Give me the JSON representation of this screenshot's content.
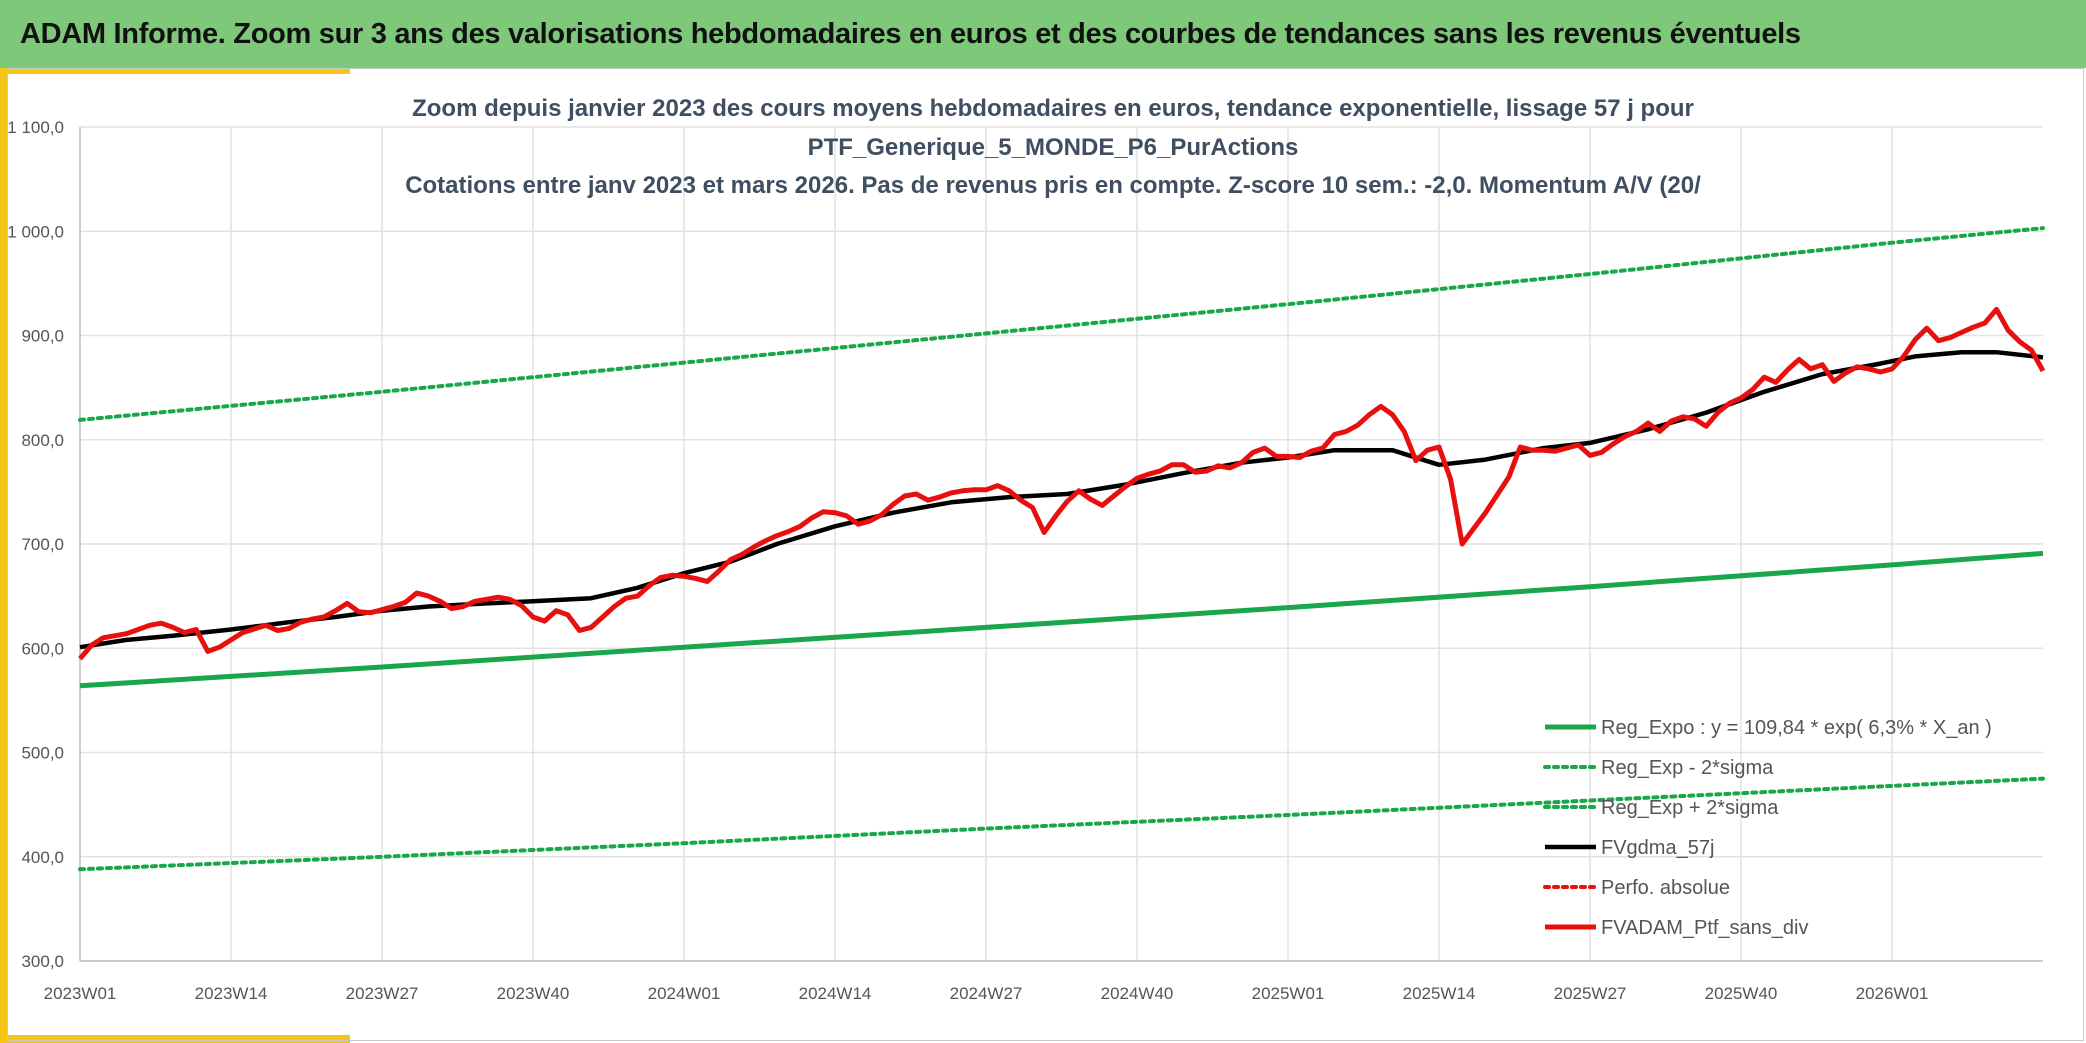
{
  "header": {
    "title": "ADAM Informe. Zoom sur 3 ans des valorisations hebdomadaires en euros et des courbes de tendances sans les revenus éventuels"
  },
  "colors": {
    "banner": "#7ec87a",
    "accent": "#f5c518",
    "trend": "#1aa64a",
    "sigma": "#1aa64a",
    "smoothed": "#000000",
    "price": "#e8100f",
    "perf": "#e8100f",
    "grid": "#e2e2e2"
  },
  "chart_data": {
    "type": "line",
    "title_lines": [
      "Zoom depuis janvier 2023 des cours moyens hebdomadaires en euros, tendance exponentielle, lissage 57 j pour",
      "PTF_Generique_5_MONDE_P6_PurActions",
      "Cotations entre janv 2023 et mars 2026. Pas de revenus pris en compte. Z-score 10 sem.: -2,0. Momentum A/V (20/"
    ],
    "ylim": [
      300,
      1100
    ],
    "y_ticks": [
      {
        "value": 300,
        "label": "300,0"
      },
      {
        "value": 400,
        "label": "400,0"
      },
      {
        "value": 500,
        "label": "500,0"
      },
      {
        "value": 600,
        "label": "600,0"
      },
      {
        "value": 700,
        "label": "700,0"
      },
      {
        "value": 800,
        "label": "800,0"
      },
      {
        "value": 900,
        "label": "900,0"
      },
      {
        "value": 1000,
        "label": "1 000,0"
      },
      {
        "value": 1100,
        "label": "1 100,0"
      }
    ],
    "xlim": [
      0,
      169
    ],
    "x_ticks": [
      {
        "value": 0,
        "label": "2023W01"
      },
      {
        "value": 13,
        "label": "2023W14"
      },
      {
        "value": 26,
        "label": "2023W27"
      },
      {
        "value": 39,
        "label": "2023W40"
      },
      {
        "value": 52,
        "label": "2024W01"
      },
      {
        "value": 65,
        "label": "2024W14"
      },
      {
        "value": 78,
        "label": "2024W27"
      },
      {
        "value": 91,
        "label": "2024W40"
      },
      {
        "value": 104,
        "label": "2025W01"
      },
      {
        "value": 117,
        "label": "2025W14"
      },
      {
        "value": 130,
        "label": "2025W27"
      },
      {
        "value": 143,
        "label": "2025W40"
      },
      {
        "value": 156,
        "label": "2026W01"
      }
    ],
    "series": [
      {
        "name": "Reg_Expo : y = 109,84 * exp( 6,3% *  X_an )",
        "style": "solid-green",
        "points": [
          [
            0,
            564
          ],
          [
            26,
            582
          ],
          [
            52,
            601
          ],
          [
            78,
            620
          ],
          [
            104,
            639
          ],
          [
            130,
            659
          ],
          [
            156,
            680
          ],
          [
            169,
            691
          ]
        ]
      },
      {
        "name": "Reg_Exp - 2*sigma",
        "style": "dotted-green",
        "points": [
          [
            0,
            388
          ],
          [
            26,
            400
          ],
          [
            52,
            413
          ],
          [
            78,
            427
          ],
          [
            104,
            440
          ],
          [
            130,
            454
          ],
          [
            156,
            468
          ],
          [
            169,
            475
          ]
        ]
      },
      {
        "name": "Reg_Exp + 2*sigma",
        "style": "dotted-green",
        "points": [
          [
            0,
            819
          ],
          [
            26,
            846
          ],
          [
            52,
            874
          ],
          [
            78,
            902
          ],
          [
            104,
            930
          ],
          [
            130,
            959
          ],
          [
            156,
            989
          ],
          [
            169,
            1003
          ]
        ]
      },
      {
        "name": "FVgdma_57j",
        "style": "solid-black",
        "points": [
          [
            0,
            601
          ],
          [
            4,
            608
          ],
          [
            8,
            612
          ],
          [
            13,
            618
          ],
          [
            18,
            625
          ],
          [
            22,
            630
          ],
          [
            26,
            636
          ],
          [
            30,
            640
          ],
          [
            35,
            643
          ],
          [
            39,
            645
          ],
          [
            44,
            648
          ],
          [
            48,
            658
          ],
          [
            52,
            672
          ],
          [
            56,
            683
          ],
          [
            60,
            700
          ],
          [
            65,
            717
          ],
          [
            70,
            730
          ],
          [
            75,
            740
          ],
          [
            80,
            745
          ],
          [
            85,
            748
          ],
          [
            90,
            757
          ],
          [
            95,
            768
          ],
          [
            100,
            778
          ],
          [
            104,
            783
          ],
          [
            108,
            790
          ],
          [
            113,
            790
          ],
          [
            117,
            776
          ],
          [
            121,
            781
          ],
          [
            126,
            792
          ],
          [
            130,
            797
          ],
          [
            135,
            810
          ],
          [
            140,
            826
          ],
          [
            145,
            846
          ],
          [
            150,
            863
          ],
          [
            155,
            873
          ],
          [
            158,
            880
          ],
          [
            162,
            884
          ],
          [
            165,
            884
          ],
          [
            169,
            879
          ]
        ]
      },
      {
        "name": "Perfo. absolue",
        "style": "dotted-red",
        "points": []
      },
      {
        "name": "FVADAM_Ptf_sans_div",
        "style": "solid-red",
        "points": [
          [
            0,
            590
          ],
          [
            1,
            603
          ],
          [
            2,
            610
          ],
          [
            4,
            614
          ],
          [
            6,
            622
          ],
          [
            7,
            624
          ],
          [
            8,
            620
          ],
          [
            9,
            615
          ],
          [
            10,
            618
          ],
          [
            11,
            597
          ],
          [
            12,
            601
          ],
          [
            14,
            615
          ],
          [
            16,
            622
          ],
          [
            17,
            617
          ],
          [
            18,
            619
          ],
          [
            19,
            625
          ],
          [
            20,
            628
          ],
          [
            21,
            630
          ],
          [
            22,
            636
          ],
          [
            23,
            643
          ],
          [
            24,
            635
          ],
          [
            25,
            634
          ],
          [
            26,
            637
          ],
          [
            27,
            640
          ],
          [
            28,
            644
          ],
          [
            29,
            653
          ],
          [
            30,
            650
          ],
          [
            31,
            645
          ],
          [
            32,
            638
          ],
          [
            33,
            640
          ],
          [
            34,
            645
          ],
          [
            35,
            647
          ],
          [
            36,
            649
          ],
          [
            37,
            647
          ],
          [
            38,
            641
          ],
          [
            39,
            630
          ],
          [
            40,
            626
          ],
          [
            41,
            636
          ],
          [
            42,
            632
          ],
          [
            43,
            617
          ],
          [
            44,
            620
          ],
          [
            45,
            630
          ],
          [
            46,
            640
          ],
          [
            47,
            648
          ],
          [
            48,
            650
          ],
          [
            49,
            660
          ],
          [
            50,
            668
          ],
          [
            51,
            670
          ],
          [
            52,
            669
          ],
          [
            53,
            667
          ],
          [
            54,
            664
          ],
          [
            55,
            674
          ],
          [
            56,
            685
          ],
          [
            57,
            690
          ],
          [
            58,
            697
          ],
          [
            59,
            703
          ],
          [
            60,
            708
          ],
          [
            61,
            712
          ],
          [
            62,
            717
          ],
          [
            63,
            725
          ],
          [
            64,
            731
          ],
          [
            65,
            730
          ],
          [
            66,
            727
          ],
          [
            67,
            719
          ],
          [
            68,
            722
          ],
          [
            69,
            728
          ],
          [
            70,
            738
          ],
          [
            71,
            746
          ],
          [
            72,
            748
          ],
          [
            73,
            742
          ],
          [
            74,
            745
          ],
          [
            75,
            749
          ],
          [
            76,
            751
          ],
          [
            77,
            752
          ],
          [
            78,
            752
          ],
          [
            79,
            756
          ],
          [
            80,
            751
          ],
          [
            81,
            742
          ],
          [
            82,
            735
          ],
          [
            83,
            711
          ],
          [
            84,
            727
          ],
          [
            85,
            741
          ],
          [
            86,
            751
          ],
          [
            87,
            743
          ],
          [
            88,
            737
          ],
          [
            89,
            746
          ],
          [
            90,
            755
          ],
          [
            91,
            763
          ],
          [
            92,
            767
          ],
          [
            93,
            770
          ],
          [
            94,
            776
          ],
          [
            95,
            776
          ],
          [
            96,
            769
          ],
          [
            97,
            770
          ],
          [
            98,
            775
          ],
          [
            99,
            773
          ],
          [
            100,
            778
          ],
          [
            101,
            788
          ],
          [
            102,
            792
          ],
          [
            103,
            784
          ],
          [
            104,
            784
          ],
          [
            105,
            783
          ],
          [
            106,
            789
          ],
          [
            107,
            792
          ],
          [
            108,
            805
          ],
          [
            109,
            808
          ],
          [
            110,
            814
          ],
          [
            111,
            824
          ],
          [
            112,
            832
          ],
          [
            113,
            824
          ],
          [
            114,
            808
          ],
          [
            115,
            780
          ],
          [
            116,
            790
          ],
          [
            117,
            793
          ],
          [
            118,
            762
          ],
          [
            119,
            700
          ],
          [
            120,
            715
          ],
          [
            121,
            730
          ],
          [
            122,
            747
          ],
          [
            123,
            764
          ],
          [
            124,
            793
          ],
          [
            125,
            790
          ],
          [
            126,
            790
          ],
          [
            127,
            789
          ],
          [
            128,
            792
          ],
          [
            129,
            795
          ],
          [
            130,
            785
          ],
          [
            131,
            788
          ],
          [
            132,
            796
          ],
          [
            133,
            803
          ],
          [
            134,
            808
          ],
          [
            135,
            816
          ],
          [
            136,
            808
          ],
          [
            137,
            818
          ],
          [
            138,
            822
          ],
          [
            139,
            820
          ],
          [
            140,
            813
          ],
          [
            141,
            826
          ],
          [
            142,
            835
          ],
          [
            143,
            840
          ],
          [
            144,
            848
          ],
          [
            145,
            860
          ],
          [
            146,
            855
          ],
          [
            147,
            867
          ],
          [
            148,
            877
          ],
          [
            149,
            868
          ],
          [
            150,
            872
          ],
          [
            151,
            856
          ],
          [
            152,
            864
          ],
          [
            153,
            870
          ],
          [
            154,
            868
          ],
          [
            155,
            865
          ],
          [
            156,
            868
          ],
          [
            157,
            880
          ],
          [
            158,
            896
          ],
          [
            159,
            907
          ],
          [
            160,
            895
          ],
          [
            161,
            898
          ],
          [
            162,
            903
          ],
          [
            163,
            908
          ],
          [
            164,
            912
          ],
          [
            165,
            925
          ],
          [
            166,
            905
          ],
          [
            167,
            894
          ],
          [
            168,
            886
          ],
          [
            169,
            866
          ]
        ]
      }
    ],
    "legend_position": "bottom-right"
  }
}
